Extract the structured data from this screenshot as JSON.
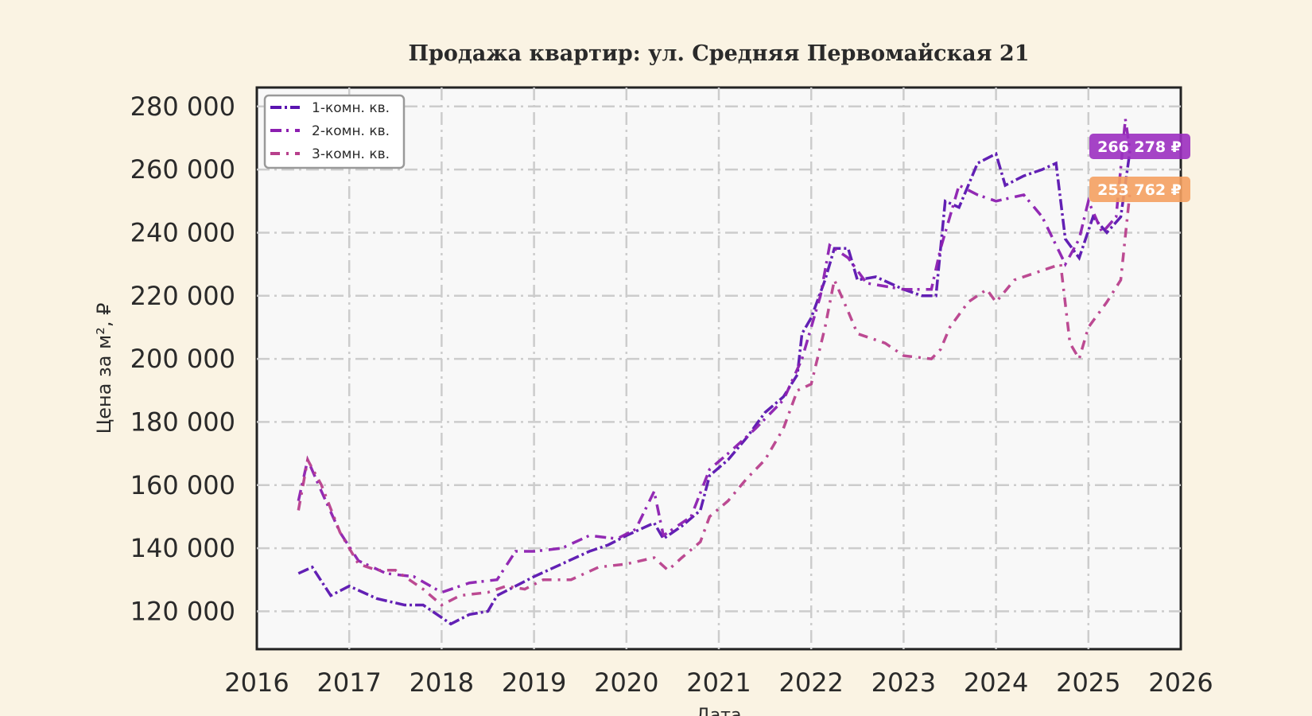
{
  "chart_data": {
    "type": "line",
    "title": "Продажа квартир: ул. Средняя Первомайская 21",
    "xlabel": "Дата",
    "ylabel": "Цена за м², ₽",
    "xlim": [
      2016,
      2026
    ],
    "ylim": [
      108000,
      286000
    ],
    "x_ticks": [
      "2016",
      "2017",
      "2018",
      "2019",
      "2020",
      "2021",
      "2022",
      "2023",
      "2024",
      "2025",
      "2026"
    ],
    "y_ticks": [
      "120 000",
      "140 000",
      "160 000",
      "180 000",
      "200 000",
      "220 000",
      "240 000",
      "260 000",
      "280 000"
    ],
    "y_tick_values": [
      120000,
      140000,
      160000,
      180000,
      200000,
      220000,
      240000,
      260000,
      280000
    ],
    "grid": true,
    "legend_position": "top-left",
    "series": [
      {
        "name": "1-комн. кв.",
        "color": "#5a14b0",
        "x": [
          2016.45,
          2016.6,
          2016.8,
          2017.0,
          2017.3,
          2017.6,
          2017.8,
          2018.0,
          2018.1,
          2018.3,
          2018.5,
          2018.6,
          2018.8,
          2019.0,
          2019.3,
          2019.6,
          2019.8,
          2020.0,
          2020.3,
          2020.4,
          2020.6,
          2020.8,
          2020.9,
          2021.1,
          2021.3,
          2021.5,
          2021.7,
          2021.85,
          2021.9,
          2022.0,
          2022.15,
          2022.25,
          2022.4,
          2022.5,
          2022.7,
          2023.0,
          2023.2,
          2023.35,
          2023.45,
          2023.6,
          2023.8,
          2024.0,
          2024.1,
          2024.3,
          2024.5,
          2024.65,
          2024.75,
          2024.9,
          2025.05,
          2025.2,
          2025.35,
          2025.45
        ],
        "y": [
          132000,
          134000,
          125000,
          128000,
          124000,
          122000,
          122000,
          118000,
          116000,
          119000,
          120000,
          125000,
          128000,
          131000,
          135000,
          139000,
          141000,
          144000,
          148000,
          143000,
          147000,
          152000,
          163000,
          168000,
          175000,
          183000,
          188000,
          195000,
          208000,
          213000,
          225000,
          235000,
          235000,
          225000,
          226000,
          222000,
          220000,
          220000,
          250000,
          248000,
          262000,
          265000,
          255000,
          258000,
          260000,
          262000,
          238000,
          232000,
          245000,
          240000,
          245000,
          266000
        ]
      },
      {
        "name": "2-комн. кв.",
        "color": "#8c1fb0",
        "x": [
          2016.45,
          2016.55,
          2016.7,
          2016.9,
          2017.1,
          2017.4,
          2017.7,
          2018.0,
          2018.3,
          2018.6,
          2018.8,
          2019.0,
          2019.3,
          2019.6,
          2019.9,
          2020.1,
          2020.3,
          2020.4,
          2020.7,
          2020.9,
          2021.1,
          2021.4,
          2021.7,
          2021.9,
          2022.1,
          2022.2,
          2022.4,
          2022.6,
          2023.0,
          2023.3,
          2023.4,
          2023.6,
          2023.8,
          2024.0,
          2024.3,
          2024.5,
          2024.75,
          2024.9,
          2025.0,
          2025.15,
          2025.3,
          2025.4,
          2025.45
        ],
        "y": [
          155000,
          168000,
          158000,
          145000,
          136000,
          132000,
          131000,
          126000,
          129000,
          130000,
          139000,
          139000,
          140000,
          144000,
          143000,
          146000,
          158000,
          144000,
          150000,
          165000,
          170000,
          178000,
          187000,
          200000,
          220000,
          236000,
          232000,
          224000,
          222000,
          222000,
          235000,
          255000,
          252000,
          250000,
          252000,
          245000,
          230000,
          238000,
          250000,
          240000,
          245000,
          276000,
          266000
        ]
      },
      {
        "name": "3-комн. кв.",
        "color": "#b8408c",
        "x": [
          2016.45,
          2016.55,
          2016.7,
          2016.9,
          2017.1,
          2017.3,
          2017.5,
          2017.8,
          2018.0,
          2018.2,
          2018.5,
          2018.7,
          2018.9,
          2019.1,
          2019.4,
          2019.7,
          2020.0,
          2020.3,
          2020.45,
          2020.6,
          2020.8,
          2020.9,
          2021.1,
          2021.3,
          2021.5,
          2021.7,
          2021.85,
          2022.0,
          2022.15,
          2022.25,
          2022.4,
          2022.5,
          2022.8,
          2023.0,
          2023.3,
          2023.4,
          2023.5,
          2023.7,
          2023.9,
          2024.0,
          2024.2,
          2024.5,
          2024.7,
          2024.8,
          2024.9,
          2025.0,
          2025.2,
          2025.35,
          2025.45
        ],
        "y": [
          152000,
          168000,
          160000,
          145000,
          135000,
          133000,
          133000,
          127000,
          122000,
          125000,
          126000,
          128000,
          127000,
          130000,
          130000,
          134000,
          135000,
          137000,
          133000,
          137000,
          142000,
          150000,
          155000,
          162000,
          168000,
          178000,
          190000,
          192000,
          210000,
          225000,
          215000,
          208000,
          205000,
          201000,
          200000,
          203000,
          210000,
          218000,
          222000,
          218000,
          225000,
          228000,
          230000,
          205000,
          200000,
          210000,
          218000,
          225000,
          253000
        ]
      }
    ],
    "annotations": [
      {
        "text": "266 278 ₽",
        "color": "#9b2fc0"
      },
      {
        "text": "253 762 ₽",
        "color": "#f4a060"
      }
    ]
  }
}
